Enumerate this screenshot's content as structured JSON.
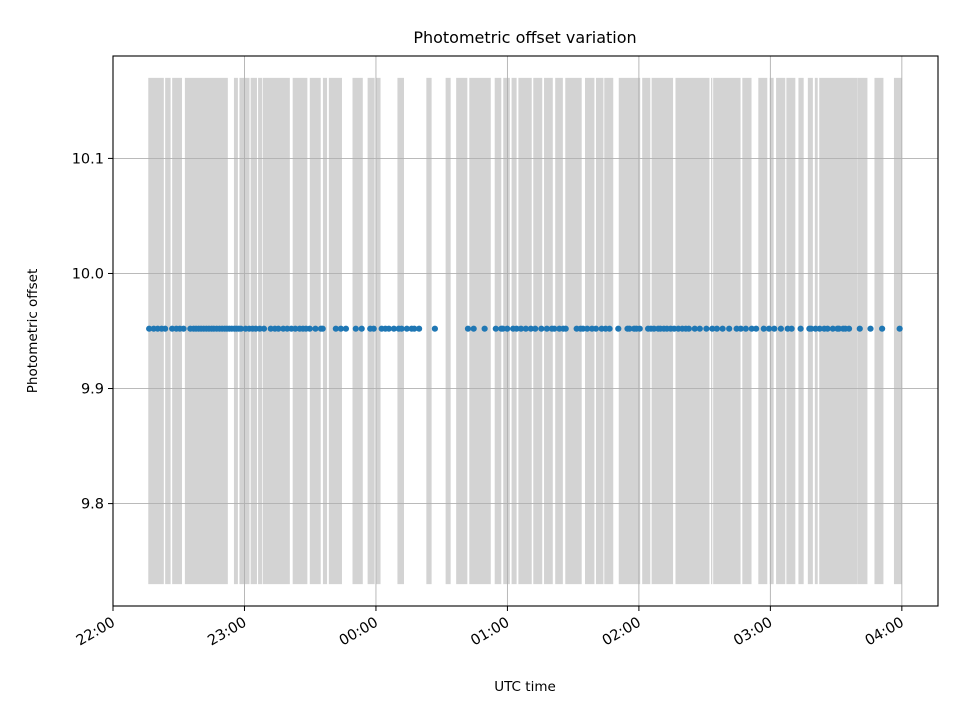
{
  "chart_data": {
    "type": "scatter",
    "title": "Photometric offset variation",
    "xlabel": "UTC time",
    "ylabel": "Photometric offset",
    "x_unit": "minutes after 22:00 UTC",
    "x_ticks": [
      {
        "value": 0,
        "label": "22:00"
      },
      {
        "value": 60,
        "label": "23:00"
      },
      {
        "value": 120,
        "label": "00:00"
      },
      {
        "value": 180,
        "label": "01:00"
      },
      {
        "value": 240,
        "label": "02:00"
      },
      {
        "value": 300,
        "label": "03:00"
      },
      {
        "value": 360,
        "label": "04:00"
      }
    ],
    "y_ticks": [
      {
        "value": 9.8,
        "label": "9.8"
      },
      {
        "value": 9.9,
        "label": "9.9"
      },
      {
        "value": 10.0,
        "label": "10.0"
      },
      {
        "value": 10.1,
        "label": "10.1"
      }
    ],
    "xlim": [
      0,
      376.5
    ],
    "ylim": [
      9.711,
      10.189
    ],
    "grid": true,
    "series": [
      {
        "color": "#1f77b4",
        "marker": "circle",
        "y_constant": 9.952,
        "x": [
          16.5,
          18.6,
          20.4,
          22.2,
          23.8,
          27.0,
          28.9,
          30.5,
          32.2,
          35.3,
          36.8,
          37.9,
          39.1,
          40.2,
          41.4,
          42.6,
          43.8,
          45.0,
          46.0,
          47.3,
          48.6,
          49.8,
          51.0,
          52.0,
          53.1,
          54.2,
          55.4,
          56.3,
          57.4,
          58.4,
          60.5,
          62.2,
          63.7,
          65.2,
          67.0,
          68.9,
          72.0,
          73.9,
          75.5,
          77.7,
          79.5,
          81.4,
          83.2,
          85.2,
          86.7,
          88.1,
          89.8,
          92.4,
          94.9,
          95.7,
          101.7,
          104.0,
          106.3,
          110.8,
          113.5,
          117.4,
          119.0,
          122.6,
          124.3,
          125.9,
          128.2,
          130.4,
          131.7,
          134.1,
          136.3,
          137.5,
          139.7,
          146.9,
          162.0,
          164.6,
          169.6,
          174.7,
          177.2,
          177.9,
          179.9,
          182.6,
          184.2,
          186.2,
          188.4,
          190.7,
          192.7,
          195.5,
          198.0,
          200.3,
          201.4,
          203.7,
          205.5,
          206.6,
          211.6,
          213.4,
          214.5,
          216.4,
          218.6,
          220.4,
          223.0,
          224.8,
          226.6,
          230.6,
          234.8,
          235.7,
          237.8,
          238.9,
          240.4,
          244.2,
          245.5,
          246.9,
          248.8,
          249.8,
          251.4,
          252.8,
          254.5,
          256.1,
          258.0,
          259.8,
          261.4,
          262.8,
          265.5,
          267.8,
          270.8,
          273.5,
          275.6,
          278.2,
          281.2,
          284.6,
          286.5,
          288.8,
          291.5,
          293.5,
          297.0,
          299.4,
          301.8,
          304.8,
          307.9,
          309.7,
          313.8,
          317.8,
          318.6,
          320.6,
          322.5,
          324.6,
          326.1,
          328.5,
          330.6,
          331.3,
          333.2,
          334.2,
          335.9,
          340.8,
          345.7,
          351.0,
          359.0
        ]
      }
    ],
    "shaded_intervals": {
      "color": "#d3d3d3",
      "y_range": [
        9.73,
        10.17
      ],
      "spans": [
        [
          16.1,
          23.2
        ],
        [
          23.8,
          26.3
        ],
        [
          27.0,
          31.5
        ],
        [
          32.8,
          52.4
        ],
        [
          55.2,
          57.0
        ],
        [
          57.7,
          62.3
        ],
        [
          62.8,
          65.7
        ],
        [
          66.2,
          68.0
        ],
        [
          68.3,
          80.7
        ],
        [
          82.0,
          88.7
        ],
        [
          89.8,
          94.8
        ],
        [
          95.8,
          97.7
        ],
        [
          98.5,
          104.5
        ],
        [
          109.3,
          114.0
        ],
        [
          116.2,
          119.4
        ],
        [
          120.0,
          122.1
        ],
        [
          129.8,
          132.8
        ],
        [
          143.0,
          145.4
        ],
        [
          151.8,
          154.1
        ],
        [
          156.6,
          161.7
        ],
        [
          162.6,
          172.4
        ],
        [
          174.2,
          177.2
        ],
        [
          178.1,
          181.1
        ],
        [
          181.9,
          184.2
        ],
        [
          185.0,
          191.1
        ],
        [
          191.8,
          195.9
        ],
        [
          196.7,
          200.7
        ],
        [
          201.8,
          205.3
        ],
        [
          206.4,
          213.9
        ],
        [
          215.4,
          219.7
        ],
        [
          220.4,
          223.8
        ],
        [
          224.2,
          228.3
        ],
        [
          230.8,
          240.6
        ],
        [
          241.5,
          245.2
        ],
        [
          245.8,
          255.6
        ],
        [
          256.7,
          272.2
        ],
        [
          272.9,
          273.5
        ],
        [
          273.9,
          286.4
        ],
        [
          287.2,
          291.4
        ],
        [
          294.5,
          298.6
        ],
        [
          299.7,
          301.5
        ],
        [
          302.6,
          306.8
        ],
        [
          307.3,
          311.4
        ],
        [
          312.8,
          315.2
        ],
        [
          317.1,
          319.4
        ],
        [
          320.3,
          321.6
        ],
        [
          322.3,
          339.7
        ],
        [
          339.8,
          344.3
        ],
        [
          347.5,
          351.6
        ],
        [
          356.4,
          360.0
        ]
      ]
    }
  }
}
